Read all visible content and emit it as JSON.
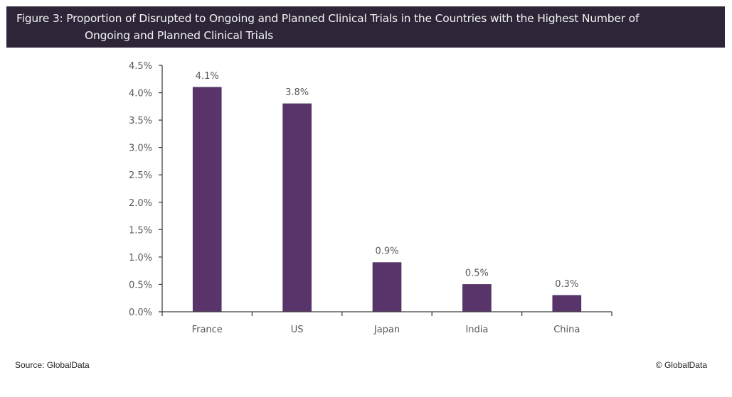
{
  "title": {
    "line1": "Figure 3: Proportion of Disrupted to Ongoing and Planned Clinical Trials in the Countries with the Highest Number of",
    "line2": "Ongoing and Planned Clinical Trials"
  },
  "footer": {
    "source": "Source: GlobalData",
    "copyright": "© GlobalData"
  },
  "chart_data": {
    "type": "bar",
    "title": "Figure 3: Proportion of Disrupted to Ongoing and Planned Clinical Trials in the Countries with the Highest Number of Ongoing and Planned Clinical Trials",
    "xlabel": "",
    "ylabel": "",
    "categories": [
      "France",
      "US",
      "Japan",
      "India",
      "China"
    ],
    "values": [
      4.1,
      3.8,
      0.9,
      0.5,
      0.3
    ],
    "data_labels": [
      "4.1%",
      "3.8%",
      "0.9%",
      "0.5%",
      "0.3%"
    ],
    "ylim": [
      0,
      4.5
    ],
    "yticks": [
      0,
      0.5,
      1.0,
      1.5,
      2.0,
      2.5,
      3.0,
      3.5,
      4.0,
      4.5
    ],
    "ytick_labels": [
      "0.0%",
      "0.5%",
      "1.0%",
      "1.5%",
      "2.0%",
      "2.5%",
      "3.0%",
      "3.5%",
      "4.0%",
      "4.5%"
    ],
    "grid": false,
    "legend": "none",
    "bar_color": "#58346b"
  }
}
